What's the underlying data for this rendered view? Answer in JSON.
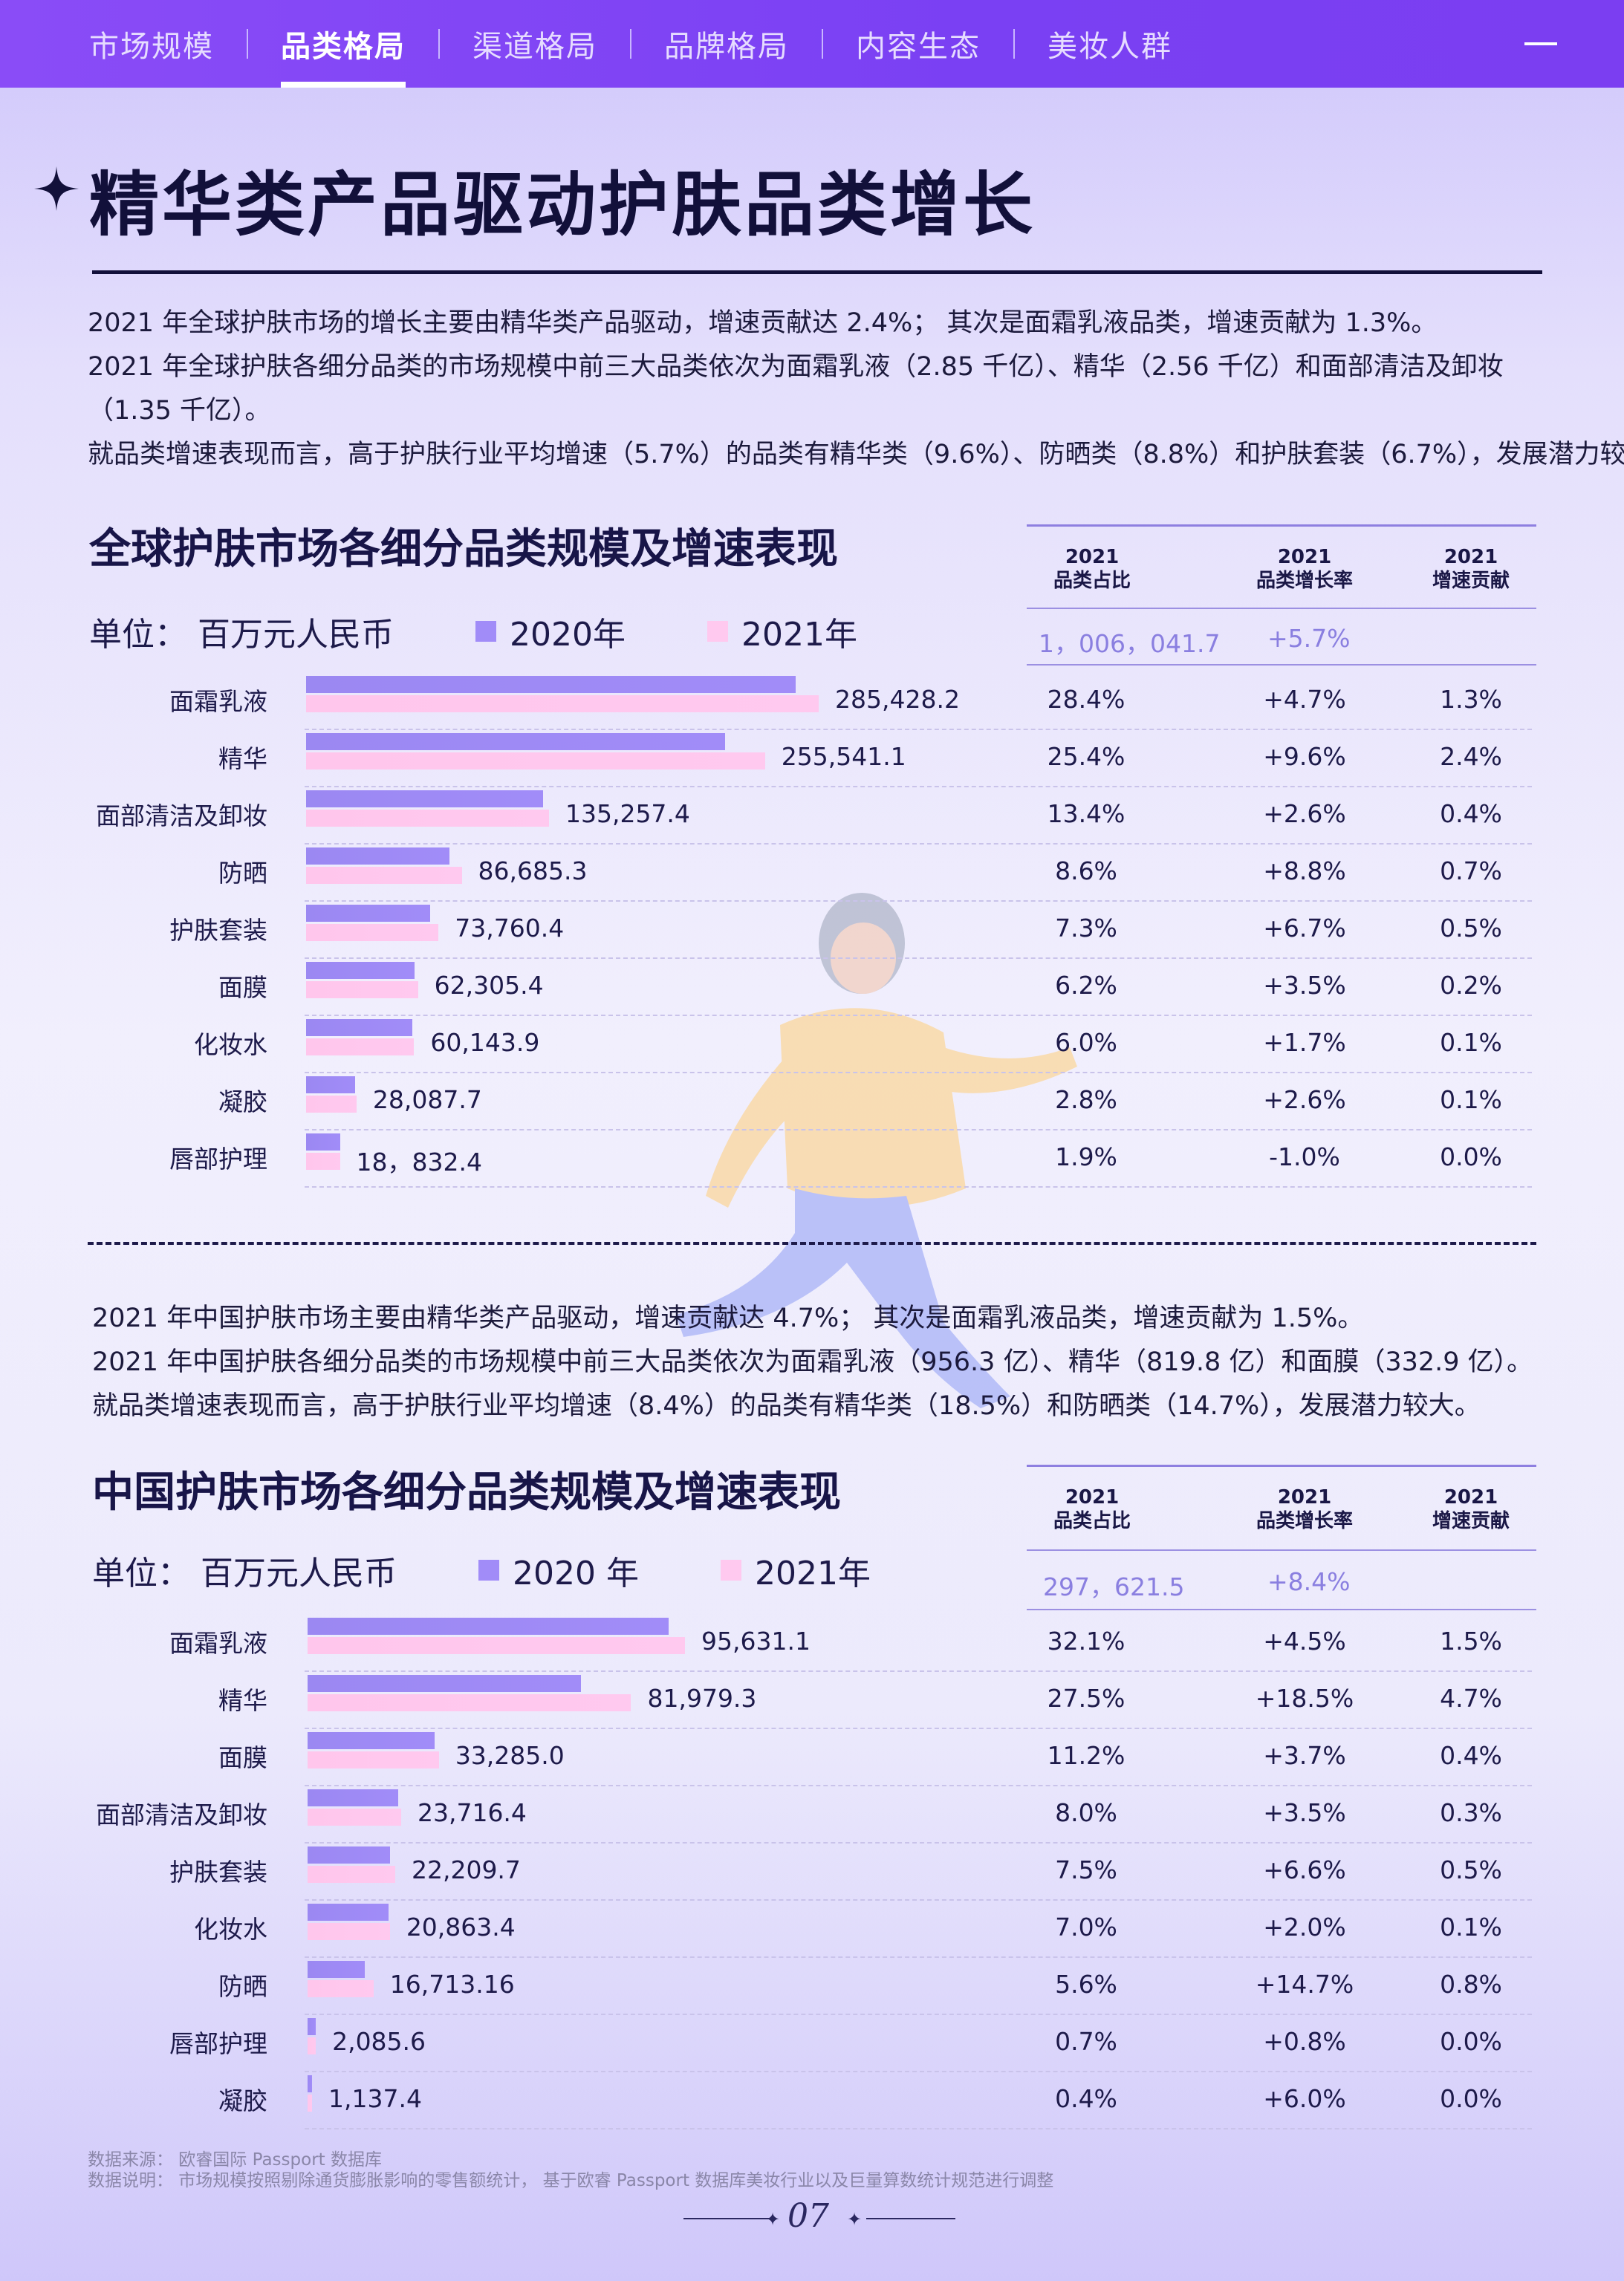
{
  "nav": {
    "items": [
      "市场规模",
      "品类格局",
      "渠道格局",
      "品牌格局",
      "内容生态",
      "美妆人群"
    ],
    "active_index": 1
  },
  "page_title": "精华类产品驱动护肤品类增长",
  "global_text": [
    "2021 年全球护肤市场的增长主要由精华类产品驱动，增速贡献达 2.4%；  其次是面霜乳液品类，增速贡献为 1.3%。",
    "2021 年全球护肤各细分品类的市场规模中前三大品类依次为面霜乳液（2.85 千亿）、精华（2.56 千亿）和面部清洁及卸妆",
    "（1.35 千亿）。",
    "就品类增速表现而言，高于护肤行业平均增速（5.7%）的品类有精华类（9.6%）、防晒类（8.8%）和护肤套装（6.7%），发展潜力较大。"
  ],
  "china_text": [
    "2021 年中国护肤市场主要由精华类产品驱动，增速贡献达 4.7%；  其次是面霜乳液品类，增速贡献为 1.5%。",
    "2021 年中国护肤各细分品类的市场规模中前三大品类依次为面霜乳液（956.3 亿）、精华（819.8 亿）和面膜（332.9 亿）。",
    "就品类增速表现而言，高于护肤行业平均增速（8.4%）的品类有精华类（18.5%）和防晒类（14.7%），发展潜力较大。"
  ],
  "colors": {
    "nav_bg": "#7a40f3",
    "bar_2020": "#a18cf8",
    "bar_2021": "#ffc9ef",
    "total_text": "#8a7fe0"
  },
  "chart_data": [
    {
      "type": "bar",
      "orientation": "horizontal",
      "title": "全球护肤市场各细分品类规模及增速表现",
      "unit": "单位：  百万元人民币",
      "legend": [
        "2020年",
        "2021年"
      ],
      "categories": [
        "面霜乳液",
        "精华",
        "面部清洁及卸妆",
        "防晒",
        "护肤套装",
        "面膜",
        "化妆水",
        "凝胶",
        "唇部护理"
      ],
      "series": [
        {
          "name": "2020年",
          "values": [
            272600,
            233200,
            131800,
            79700,
            69100,
            60200,
            59100,
            27400,
            19020
          ]
        },
        {
          "name": "2021年",
          "values": [
            285428.2,
            255541.1,
            135257.4,
            86685.3,
            73760.4,
            62305.4,
            60143.9,
            28087.7,
            18832.4
          ]
        }
      ],
      "value_labels": [
        "285,428.2",
        "255,541.1",
        "135,257.4",
        "86,685.3",
        "73,760.4",
        "62,305.4",
        "60,143.9",
        "28,087.7",
        "18，832.4"
      ],
      "table": {
        "headers": [
          [
            "2021",
            "品类占比"
          ],
          [
            "2021",
            "品类增长率"
          ],
          [
            "2021",
            "增速贡献"
          ]
        ],
        "total": [
          "1，006，041.7",
          "+5.7%",
          ""
        ],
        "rows": [
          [
            "28.4%",
            "+4.7%",
            "1.3%"
          ],
          [
            "25.4%",
            "+9.6%",
            "2.4%"
          ],
          [
            "13.4%",
            "+2.6%",
            "0.4%"
          ],
          [
            "8.6%",
            "+8.8%",
            "0.7%"
          ],
          [
            "7.3%",
            "+6.7%",
            "0.5%"
          ],
          [
            "6.2%",
            "+3.5%",
            "0.2%"
          ],
          [
            "6.0%",
            "+1.7%",
            "0.1%"
          ],
          [
            "2.8%",
            "+2.6%",
            "0.1%"
          ],
          [
            "1.9%",
            "-1.0%",
            "0.0%"
          ]
        ]
      }
    },
    {
      "type": "bar",
      "orientation": "horizontal",
      "title": "中国护肤市场各细分品类规模及增速表现",
      "unit": "单位：  百万元人民币",
      "legend": [
        "2020 年",
        "2021年"
      ],
      "categories": [
        "面霜乳液",
        "精华",
        "面膜",
        "面部清洁及卸妆",
        "护肤套装",
        "化妆水",
        "防晒",
        "唇部护理",
        "凝胶"
      ],
      "series": [
        {
          "name": "2020 年",
          "values": [
            91500,
            69200,
            32100,
            22900,
            20840,
            20450,
            14570,
            2070,
            1072
          ]
        },
        {
          "name": "2021 年",
          "values": [
            95631.1,
            81979.3,
            33285.0,
            23716.4,
            22209.7,
            20863.4,
            16713.16,
            2085.6,
            1137.4
          ]
        }
      ],
      "value_labels": [
        "95,631.1",
        "81,979.3",
        "33,285.0",
        "23,716.4",
        "22,209.7",
        "20,863.4",
        "16,713.16",
        "2,085.6",
        "1,137.4"
      ],
      "table": {
        "headers": [
          [
            "2021",
            "品类占比"
          ],
          [
            "2021",
            "品类增长率"
          ],
          [
            "2021",
            "增速贡献"
          ]
        ],
        "total": [
          "297，621.5",
          "+8.4%",
          ""
        ],
        "rows": [
          [
            "32.1%",
            "+4.5%",
            "1.5%"
          ],
          [
            "27.5%",
            "+18.5%",
            "4.7%"
          ],
          [
            "11.2%",
            "+3.7%",
            "0.4%"
          ],
          [
            "8.0%",
            "+3.5%",
            "0.3%"
          ],
          [
            "7.5%",
            "+6.6%",
            "0.5%"
          ],
          [
            "7.0%",
            "+2.0%",
            "0.1%"
          ],
          [
            "5.6%",
            "+14.7%",
            "0.8%"
          ],
          [
            "0.7%",
            "+0.8%",
            "0.0%"
          ],
          [
            "0.4%",
            "+6.0%",
            "0.0%"
          ]
        ]
      }
    }
  ],
  "footer": {
    "source": "数据来源：  欧睿国际 Passport 数据库",
    "note": "数据说明：  市场规模按照剔除通货膨胀影响的零售额统计，  基于欧睿 Passport 数据库美妆行业以及巨量算数统计规范进行调整",
    "page_number": "07"
  }
}
